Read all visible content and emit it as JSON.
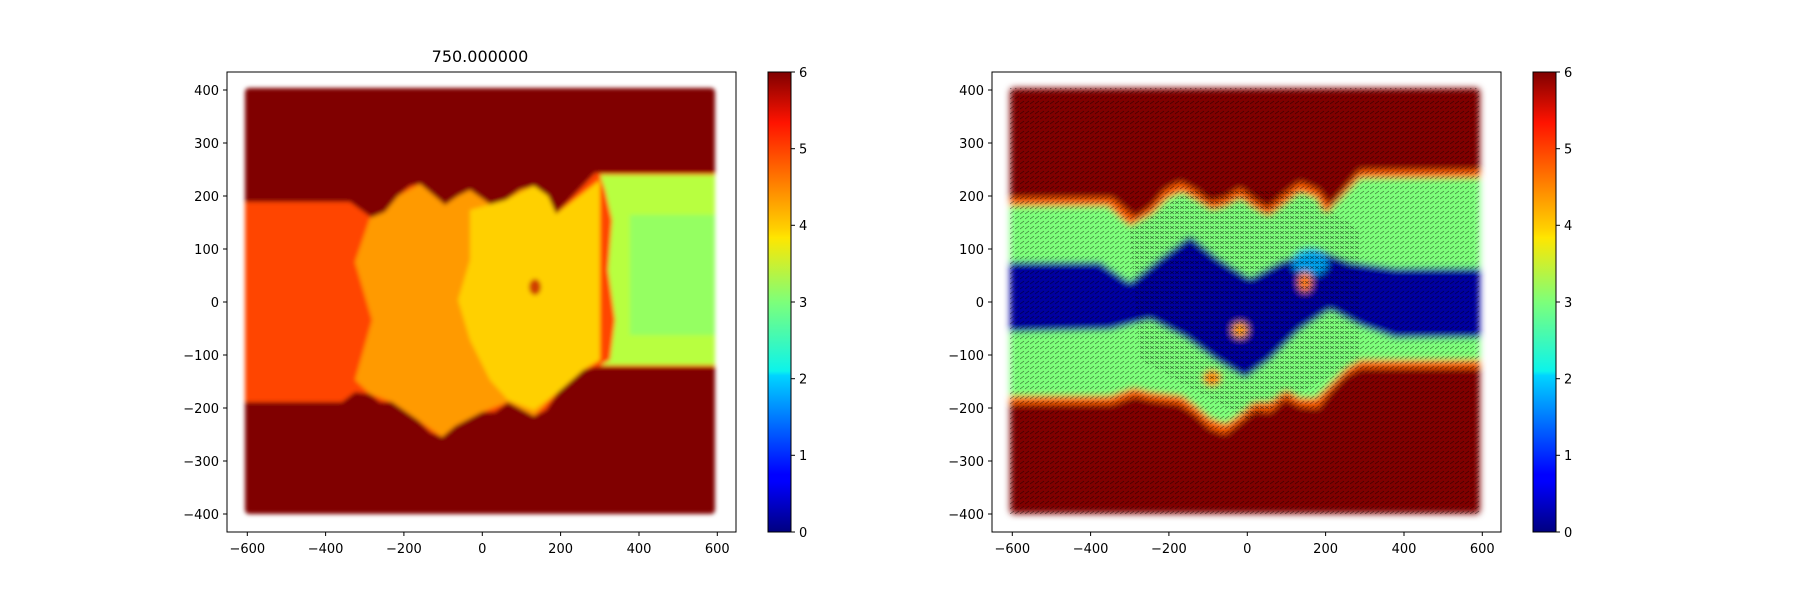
{
  "chart_data": [
    {
      "type": "heatmap",
      "title": "750.000000",
      "xlim": [
        -650,
        650
      ],
      "ylim": [
        -435,
        435
      ],
      "x_ticks": [
        -600,
        -400,
        -200,
        0,
        200,
        400,
        600
      ],
      "x_tick_labels": [
        "−600",
        "−400",
        "−200",
        "0",
        "200",
        "400",
        "600"
      ],
      "y_ticks": [
        -400,
        -300,
        -200,
        -100,
        0,
        100,
        200,
        300,
        400
      ],
      "y_tick_labels": [
        "−400",
        "−300",
        "−200",
        "−100",
        "0",
        "100",
        "200",
        "300",
        "400"
      ],
      "domain": {
        "x": [
          -600,
          600
        ],
        "y": [
          -400,
          400
        ]
      },
      "colormap": "jet",
      "colorbar": {
        "min": 0,
        "max": 6,
        "ticks": [
          0,
          1,
          2,
          3,
          4,
          5,
          6
        ],
        "tick_labels": [
          "0",
          "1",
          "2",
          "3",
          "4",
          "5",
          "6"
        ]
      },
      "field_values": {
        "outside_channel": 6,
        "inlet_left": 5.2,
        "outlet_right": 3.4,
        "mixing_zone_range": [
          4.2,
          4.8
        ]
      },
      "arrows": false
    },
    {
      "type": "heatmap",
      "title": "",
      "xlim": [
        -650,
        650
      ],
      "ylim": [
        -435,
        435
      ],
      "x_ticks": [
        -600,
        -400,
        -200,
        0,
        200,
        400,
        600
      ],
      "x_tick_labels": [
        "−600",
        "−400",
        "−200",
        "0",
        "200",
        "400",
        "600"
      ],
      "y_ticks": [
        -400,
        -300,
        -200,
        -100,
        0,
        100,
        200,
        300,
        400
      ],
      "y_tick_labels": [
        "−400",
        "−300",
        "−200",
        "−100",
        "0",
        "100",
        "200",
        "300",
        "400"
      ],
      "domain": {
        "x": [
          -600,
          600
        ],
        "y": [
          -400,
          400
        ]
      },
      "colormap": "jet",
      "colorbar": {
        "min": 0,
        "max": 6,
        "ticks": [
          0,
          1,
          2,
          3,
          4,
          5,
          6
        ],
        "tick_labels": [
          "0",
          "1",
          "2",
          "3",
          "4",
          "5",
          "6"
        ]
      },
      "field_values": {
        "outside_channel": 6,
        "channel_body": 3.0,
        "core_jet": 0.3
      },
      "arrows": true
    }
  ]
}
